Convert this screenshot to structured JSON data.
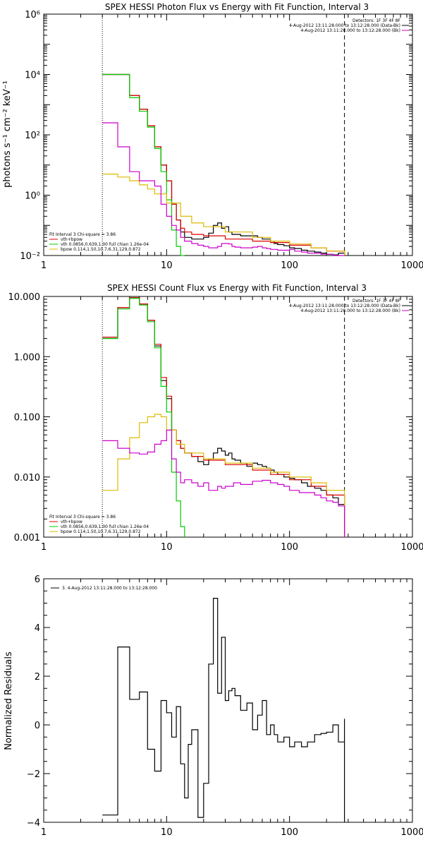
{
  "chart_data": [
    {
      "type": "line",
      "title": "SPEX HESSI Photon Flux vs Energy with Fit Function, Interval 3",
      "xlabel": "",
      "ylabel": "photons s⁻¹ cm⁻² keV⁻¹",
      "xscale": "log",
      "yscale": "log",
      "xlim": [
        1,
        1000
      ],
      "ylim": [
        0.01,
        1000000
      ],
      "xticks": [
        {
          "v": 1,
          "label": "1"
        },
        {
          "v": 10,
          "label": "10"
        },
        {
          "v": 100,
          "label": "100"
        },
        {
          "v": 1000,
          "label": "1000"
        }
      ],
      "yticks": [
        {
          "v": 0.01,
          "label": "10⁻²"
        },
        {
          "v": 1,
          "label": "10⁰"
        },
        {
          "v": 100,
          "label": "10²"
        },
        {
          "v": 10000,
          "label": "10⁴"
        },
        {
          "v": 1000000,
          "label": "10⁶"
        }
      ],
      "vlines": [
        {
          "x": 3,
          "style": "dotted"
        },
        {
          "x": 280,
          "style": "dashed"
        }
      ],
      "legend_top_right": [
        "Detectors: 1F 3F 4F 8F",
        "4-Aug-2012 13:11:28.000 to 13:12:28.000 (Data-Bk)",
        "4-Aug-2012 13:11:28.000 to 13:12:28.000 (Bk)"
      ],
      "legend_bottom_left": [
        "Fit Interval 3   Chi-square = 3.86",
        "vth+bpow",
        "vth 0.0856,0.639,1.00  full chian 1.26e-04",
        "bpow 0.114,1.50,10.7,6.31,129,0.872"
      ],
      "series": [
        {
          "color": "#000000",
          "x": [
            3,
            4,
            5,
            6,
            7,
            8,
            9,
            10,
            11,
            12,
            13,
            14,
            16,
            18,
            20,
            22,
            24,
            26,
            28,
            30,
            32,
            34,
            36,
            40,
            45,
            50,
            55,
            60,
            65,
            70,
            75,
            80,
            90,
            100,
            110,
            125,
            140,
            160,
            180,
            200,
            225,
            250,
            280
          ],
          "values": [
            10000,
            10000,
            2000,
            700,
            200,
            40,
            10,
            3,
            0.5,
            0.15,
            0.06,
            0.04,
            0.035,
            0.035,
            0.04,
            0.055,
            0.1,
            0.12,
            0.08,
            0.09,
            0.06,
            0.05,
            0.05,
            0.045,
            0.045,
            0.045,
            0.04,
            0.035,
            0.035,
            0.03,
            0.025,
            0.023,
            0.021,
            0.018,
            0.017,
            0.015,
            0.014,
            0.013,
            0.012,
            0.011,
            0.0105,
            0.012,
            0.01
          ]
        },
        {
          "color": "#dd0000",
          "x": [
            3,
            4,
            5,
            6,
            7,
            8,
            9,
            10,
            11,
            12,
            13,
            14,
            16,
            20,
            30,
            50,
            70,
            100,
            150,
            200,
            280
          ],
          "values": [
            10000,
            10000,
            2000,
            700,
            200,
            40,
            10,
            3,
            0.5,
            0.15,
            0.08,
            0.06,
            0.05,
            0.045,
            0.035,
            0.03,
            0.027,
            0.022,
            0.018,
            0.014,
            0.011
          ]
        },
        {
          "color": "#00cc00",
          "x": [
            3,
            4,
            5,
            6,
            7,
            8,
            9,
            10,
            11,
            12,
            13,
            14
          ],
          "values": [
            10000,
            10000,
            1700,
            600,
            180,
            35,
            6,
            0.7,
            0.07,
            0.02,
            0.01,
            0.005
          ]
        },
        {
          "color": "#ddbb00",
          "x": [
            3,
            4,
            5,
            6,
            7,
            8,
            10,
            13,
            16,
            20,
            30,
            50,
            70,
            100,
            150,
            200,
            280
          ],
          "values": [
            5,
            4,
            3,
            2.2,
            1.6,
            1.1,
            0.55,
            0.2,
            0.12,
            0.09,
            0.06,
            0.04,
            0.03,
            0.024,
            0.018,
            0.014,
            0.011
          ]
        },
        {
          "color": "#cc00cc",
          "x": [
            3,
            4,
            5,
            6,
            7,
            8,
            9,
            10,
            11,
            12,
            13,
            14,
            16,
            18,
            20,
            22,
            24,
            26,
            28,
            30,
            32,
            34,
            36,
            40,
            45,
            50,
            55,
            60,
            65,
            70,
            80,
            90,
            100,
            110,
            125,
            140,
            160,
            180,
            200,
            225,
            250,
            280
          ],
          "values": [
            250,
            40,
            6,
            3,
            3,
            2,
            0.5,
            0.2,
            0.1,
            0.07,
            0.04,
            0.03,
            0.025,
            0.022,
            0.02,
            0.018,
            0.018,
            0.02,
            0.025,
            0.025,
            0.024,
            0.02,
            0.019,
            0.018,
            0.018,
            0.019,
            0.02,
            0.018,
            0.017,
            0.016,
            0.015,
            0.015,
            0.016,
            0.014,
            0.013,
            0.012,
            0.012,
            0.011,
            0.011,
            0.01,
            0.01,
            0.01
          ]
        }
      ]
    },
    {
      "type": "line",
      "title": "SPEX HESSI Count Flux vs Energy with Fit Function, Interval 3",
      "xlabel": "",
      "ylabel": "",
      "xscale": "log",
      "yscale": "log",
      "xlim": [
        1,
        1000
      ],
      "ylim": [
        0.001,
        10
      ],
      "xticks": [
        {
          "v": 1,
          "label": "1"
        },
        {
          "v": 10,
          "label": "10"
        },
        {
          "v": 100,
          "label": "100"
        },
        {
          "v": 1000,
          "label": "1000"
        }
      ],
      "yticks": [
        {
          "v": 0.001,
          "label": "0.001"
        },
        {
          "v": 0.01,
          "label": "0.010"
        },
        {
          "v": 0.1,
          "label": "0.100"
        },
        {
          "v": 1,
          "label": "1.000"
        },
        {
          "v": 10,
          "label": "10.000"
        }
      ],
      "vlines": [
        {
          "x": 3,
          "style": "dotted"
        },
        {
          "x": 280,
          "style": "dashed"
        }
      ],
      "legend_top_right": [
        "Detectors: 1F 3F 4F 8F",
        "4-Aug-2012 13:11:28.000 to 13:12:28.000 (Data-Bk)",
        "4-Aug-2012 13:11:28.000 to 13:12:28.000 (Bk)"
      ],
      "legend_bottom_left": [
        "Fit Interval 3   Chi-square = 3.86",
        "vth+bpow",
        "vth 0.0856,0.639,1.00  full chian 1.26e-04",
        "bpow 0.114,1.50,10.7,6.31,129,0.872"
      ],
      "series": [
        {
          "color": "#000000",
          "x": [
            3,
            4,
            5,
            6,
            7,
            8,
            9,
            10,
            11,
            12,
            13,
            14,
            16,
            18,
            20,
            22,
            24,
            26,
            28,
            30,
            32,
            34,
            36,
            40,
            45,
            50,
            55,
            60,
            65,
            70,
            75,
            80,
            90,
            100,
            110,
            125,
            140,
            160,
            180,
            200,
            225,
            250,
            280
          ],
          "values": [
            2.1,
            6.5,
            9.5,
            7.5,
            4,
            1.5,
            0.4,
            0.2,
            0.06,
            0.04,
            0.03,
            0.025,
            0.022,
            0.018,
            0.016,
            0.02,
            0.025,
            0.03,
            0.027,
            0.023,
            0.025,
            0.02,
            0.019,
            0.017,
            0.015,
            0.017,
            0.016,
            0.015,
            0.014,
            0.013,
            0.012,
            0.011,
            0.01,
            0.0095,
            0.009,
            0.008,
            0.007,
            0.0065,
            0.006,
            0.005,
            0.0045,
            0.0035,
            0.003
          ]
        },
        {
          "color": "#dd0000",
          "x": [
            3,
            4,
            5,
            6,
            7,
            8,
            9,
            10,
            11,
            12,
            13,
            14,
            16,
            20,
            30,
            50,
            70,
            100,
            150,
            200,
            280
          ],
          "values": [
            2.1,
            6.5,
            9.5,
            7.5,
            4,
            1.6,
            0.45,
            0.22,
            0.06,
            0.04,
            0.03,
            0.025,
            0.022,
            0.019,
            0.016,
            0.013,
            0.011,
            0.009,
            0.007,
            0.005,
            0.003
          ]
        },
        {
          "color": "#00cc00",
          "x": [
            3,
            4,
            5,
            6,
            7,
            8,
            9,
            10,
            11,
            12,
            13,
            14
          ],
          "values": [
            2,
            6.2,
            9.3,
            7.2,
            3.8,
            1.4,
            0.32,
            0.12,
            0.012,
            0.004,
            0.0015,
            0.001
          ]
        },
        {
          "color": "#ddbb00",
          "x": [
            3,
            4,
            5,
            6,
            7,
            8,
            9,
            10,
            12,
            14,
            20,
            30,
            50,
            70,
            100,
            150,
            200,
            280
          ],
          "values": [
            0.006,
            0.02,
            0.045,
            0.08,
            0.1,
            0.11,
            0.1,
            0.06,
            0.035,
            0.025,
            0.02,
            0.017,
            0.014,
            0.012,
            0.01,
            0.008,
            0.006,
            0.003
          ]
        },
        {
          "color": "#cc00cc",
          "x": [
            3,
            4,
            5,
            6,
            7,
            8,
            9,
            10,
            11,
            12,
            13,
            14,
            16,
            18,
            20,
            22,
            24,
            26,
            28,
            30,
            35,
            40,
            50,
            60,
            70,
            80,
            90,
            100,
            120,
            140,
            160,
            180,
            200,
            225,
            250,
            280
          ],
          "values": [
            0.04,
            0.03,
            0.025,
            0.024,
            0.026,
            0.035,
            0.04,
            0.06,
            0.02,
            0.012,
            0.008,
            0.009,
            0.008,
            0.007,
            0.008,
            0.006,
            0.006,
            0.007,
            0.0065,
            0.007,
            0.008,
            0.0075,
            0.0085,
            0.0088,
            0.008,
            0.0075,
            0.007,
            0.006,
            0.0055,
            0.0055,
            0.005,
            0.0045,
            0.004,
            0.0038,
            0.0033,
            0.0025
          ]
        }
      ]
    },
    {
      "type": "line",
      "title": "",
      "xlabel": "",
      "ylabel": "Normalized Residuals",
      "xscale": "log",
      "yscale": "linear",
      "xlim": [
        1,
        1000
      ],
      "ylim": [
        -4,
        6
      ],
      "xticks": [
        {
          "v": 1,
          "label": "1"
        },
        {
          "v": 10,
          "label": "10"
        },
        {
          "v": 100,
          "label": "100"
        },
        {
          "v": 1000,
          "label": "1000"
        }
      ],
      "yticks": [
        {
          "v": -4,
          "label": "−4"
        },
        {
          "v": -2,
          "label": "−2"
        },
        {
          "v": 0,
          "label": "0"
        },
        {
          "v": 2,
          "label": "2"
        },
        {
          "v": 4,
          "label": "4"
        },
        {
          "v": 6,
          "label": "6"
        }
      ],
      "vlines": [],
      "legend_top_left": [
        "3.  4-Aug-2012 13:11:28.000 to 13:12:28.000"
      ],
      "series": [
        {
          "color": "#000000",
          "x": [
            3,
            4,
            5,
            6,
            7,
            8,
            9,
            10,
            11,
            12,
            13,
            14,
            15,
            16,
            18,
            20,
            22,
            24,
            26,
            28,
            30,
            32,
            34,
            36,
            40,
            45,
            50,
            55,
            60,
            65,
            70,
            75,
            80,
            90,
            100,
            110,
            125,
            140,
            160,
            180,
            200,
            225,
            250,
            280
          ],
          "values": [
            -3.7,
            3.2,
            1.05,
            1.35,
            -1.0,
            -1.9,
            1.0,
            0.5,
            -0.5,
            0.75,
            -1.6,
            -3.0,
            -0.8,
            -0.2,
            -3.8,
            -2.4,
            2.5,
            5.2,
            1.3,
            3.6,
            1.0,
            1.4,
            1.5,
            1.2,
            0.6,
            0.9,
            -0.2,
            0.4,
            1.0,
            -0.4,
            0.0,
            -0.4,
            -0.7,
            -0.5,
            -0.9,
            -0.7,
            -0.9,
            -0.7,
            -0.4,
            -0.35,
            -0.3,
            0.0,
            -0.7,
            0.25
          ]
        }
      ]
    }
  ]
}
